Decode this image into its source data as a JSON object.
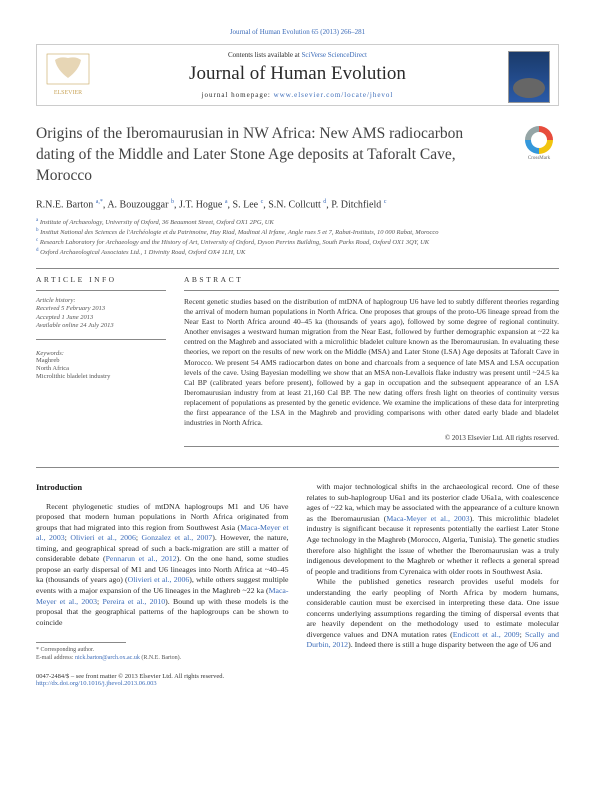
{
  "citation": "Journal of Human Evolution 65 (2013) 266–281",
  "contentsLine": "Contents lists available at ",
  "contentsLink": "SciVerse ScienceDirect",
  "journalTitle": "Journal of Human Evolution",
  "homepageLabel": "journal homepage: ",
  "homepageUrl": "www.elsevier.com/locate/jhevol",
  "elsevierLabel": "ELSEVIER",
  "crossmarkLabel": "CrossMark",
  "title": "Origins of the Iberomaurusian in NW Africa: New AMS radiocarbon dating of the Middle and Later Stone Age deposits at Taforalt Cave, Morocco",
  "authorsHtml": "R.N.E. Barton <sup>a,*</sup>, A. Bouzouggar <sup>b</sup>, J.T. Hogue <sup>a</sup>, S. Lee <sup>c</sup>, S.N. Collcutt <sup>d</sup>, P. Ditchfield <sup>c</sup>",
  "affiliations": {
    "a": "Institute of Archaeology, University of Oxford, 36 Beaumont Street, Oxford OX1 2PG, UK",
    "b": "Institut National des Sciences de l'Archéologie et du Patrimoine, Hay Riad, Madinat Al Irfane, Angle rues 5 et 7, Rabat-Instituts, 10 000 Rabat, Morocco",
    "c": "Research Laboratory for Archaeology and the History of Art, University of Oxford, Dyson Perrins Building, South Parks Road, Oxford OX1 3QY, UK",
    "d": "Oxford Archaeological Associates Ltd., 1 Divinity Road, Oxford OX4 1LH, UK"
  },
  "infoLabel": "ARTICLE INFO",
  "abstractLabel": "ABSTRACT",
  "history": {
    "label": "Article history:",
    "received": "Received 5 February 2013",
    "accepted": "Accepted 1 June 2013",
    "online": "Available online 24 July 2013"
  },
  "keywordsLabel": "Keywords:",
  "keywords": [
    "Maghreb",
    "North Africa",
    "Microlithic bladelet industry"
  ],
  "abstract": "Recent genetic studies based on the distribution of mtDNA of haplogroup U6 have led to subtly different theories regarding the arrival of modern human populations in North Africa. One proposes that groups of the proto-U6 lineage spread from the Near East to North Africa around 40–45 ka (thousands of years ago), followed by some degree of regional continuity. Another envisages a westward human migration from the Near East, followed by further demographic expansion at ~22 ka centred on the Maghreb and associated with a microlithic bladelet culture known as the Iberomaurusian. In evaluating these theories, we report on the results of new work on the Middle (MSA) and Later Stone (LSA) Age deposits at Taforalt Cave in Morocco. We present 54 AMS radiocarbon dates on bone and charcoals from a sequence of late MSA and LSA occupation levels of the cave. Using Bayesian modelling we show that an MSA non-Levallois flake industry was present until ~24.5 ka Cal BP (calibrated years before present), followed by a gap in occupation and the subsequent appearance of an LSA Iberomaurusian industry from at least 21,160 Cal BP. The new dating offers fresh light on theories of continuity versus replacement of populations as presented by the genetic evidence. We examine the implications of these data for interpreting the first appearance of the LSA in the Maghreb and providing comparisons with other dated early blade and bladelet industries in North Africa.",
  "copyright": "© 2013 Elsevier Ltd. All rights reserved.",
  "introHeading": "Introduction",
  "introCol1": "Recent phylogenetic studies of mtDNA haplogroups M1 and U6 have proposed that modern human populations in North Africa originated from groups that had migrated into this region from Southwest Asia (<a>Maca-Meyer et al., 2003</a>; <a>Olivieri et al., 2006</a>; <a>Gonzalez et al., 2007</a>). However, the nature, timing, and geographical spread of such a back-migration are still a matter of considerable debate (<a>Pennarun et al., 2012</a>). On the one hand, some studies propose an early dispersal of M1 and U6 lineages into North Africa at ~40–45 ka (thousands of years ago) (<a>Olivieri et al., 2006</a>), while others suggest multiple events with a major expansion of the U6 lineages in the Maghreb ~22 ka (<a>Maca-Meyer et al., 2003</a>; <a>Pereira et al., 2010</a>). Bound up with these models is the proposal that the geographical patterns of the haplogroups can be shown to coincide",
  "introCol2a": "with major technological shifts in the archaeological record. One of these relates to sub-haplogroup U6a1 and its posterior clade U6a1a, with coalescence ages of ~22 ka, which may be associated with the appearance of a culture known as the Iberomaurusian (<a>Maca-Meyer et al., 2003</a>). This microlithic bladelet industry is significant because it represents potentially the earliest Later Stone Age technology in the Maghreb (Morocco, Algeria, Tunisia). The genetic studies therefore also highlight the issue of whether the Iberomaurusian was a truly indigenous development to the Maghreb or whether it reflects a general spread of people and traditions from Cyrenaica with older roots in Southwest Asia.",
  "introCol2b": "While the published genetics research provides useful models for understanding the early peopling of North Africa by modern humans, considerable caution must be exercised in interpreting these data. One issue concerns underlying assumptions regarding the timing of dispersal events that are heavily dependent on the methodology used to estimate molecular divergence values and DNA mutation rates (<a>Endicott et al., 2009</a>; <a>Scally and Durbin, 2012</a>). Indeed there is still a huge disparity between the age of U6 and",
  "footnoteStar": "* Corresponding author.",
  "footnoteEmail": "E-mail address: ",
  "footnoteEmailLink": "nick.barton@arch.ox.ac.uk",
  "footnoteEmailTail": " (R.N.E. Barton).",
  "footerLeft1": "0047-2484/$ – see front matter © 2013 Elsevier Ltd. All rights reserved.",
  "footerLeft2": "http://dx.doi.org/10.1016/j.jhevol.2013.06.003"
}
